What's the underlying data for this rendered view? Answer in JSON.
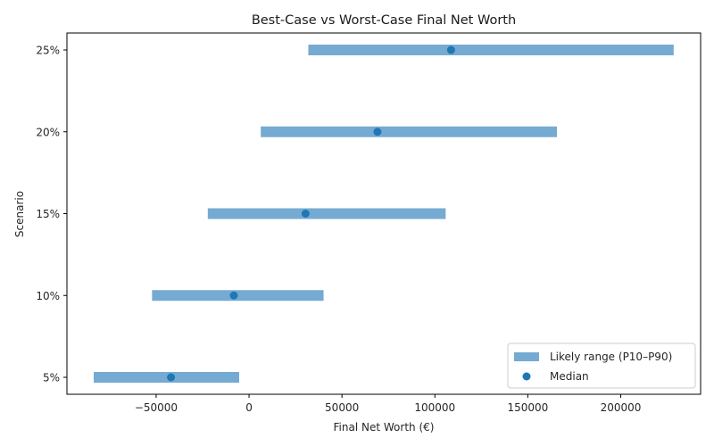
{
  "chart_data": {
    "type": "range-bar",
    "title": "Best-Case vs Worst-Case Final Net Worth",
    "xlabel": "Final Net Worth (€)",
    "ylabel": "Scenario",
    "xlim": [
      -98000,
      243000
    ],
    "x_ticks": [
      -50000,
      0,
      50000,
      100000,
      150000,
      200000
    ],
    "x_tick_labels": [
      "−50000",
      "0",
      "50000",
      "100000",
      "150000",
      "200000"
    ],
    "categories": [
      "5%",
      "10%",
      "15%",
      "20%",
      "25%"
    ],
    "series": [
      {
        "name": "Likely range (P10–P90)",
        "type": "range",
        "color": "#75aad2",
        "low": [
          -83600,
          -52200,
          -22200,
          6300,
          31900
        ],
        "high": [
          -5300,
          40100,
          105800,
          165700,
          228500
        ]
      },
      {
        "name": "Median",
        "type": "scatter",
        "color": "#1f77b4",
        "values": [
          -42000,
          -8200,
          30400,
          69100,
          108700
        ]
      }
    ],
    "legend": {
      "position": "lower right",
      "entries": [
        "Likely range (P10–P90)",
        "Median"
      ]
    },
    "grid": false
  }
}
